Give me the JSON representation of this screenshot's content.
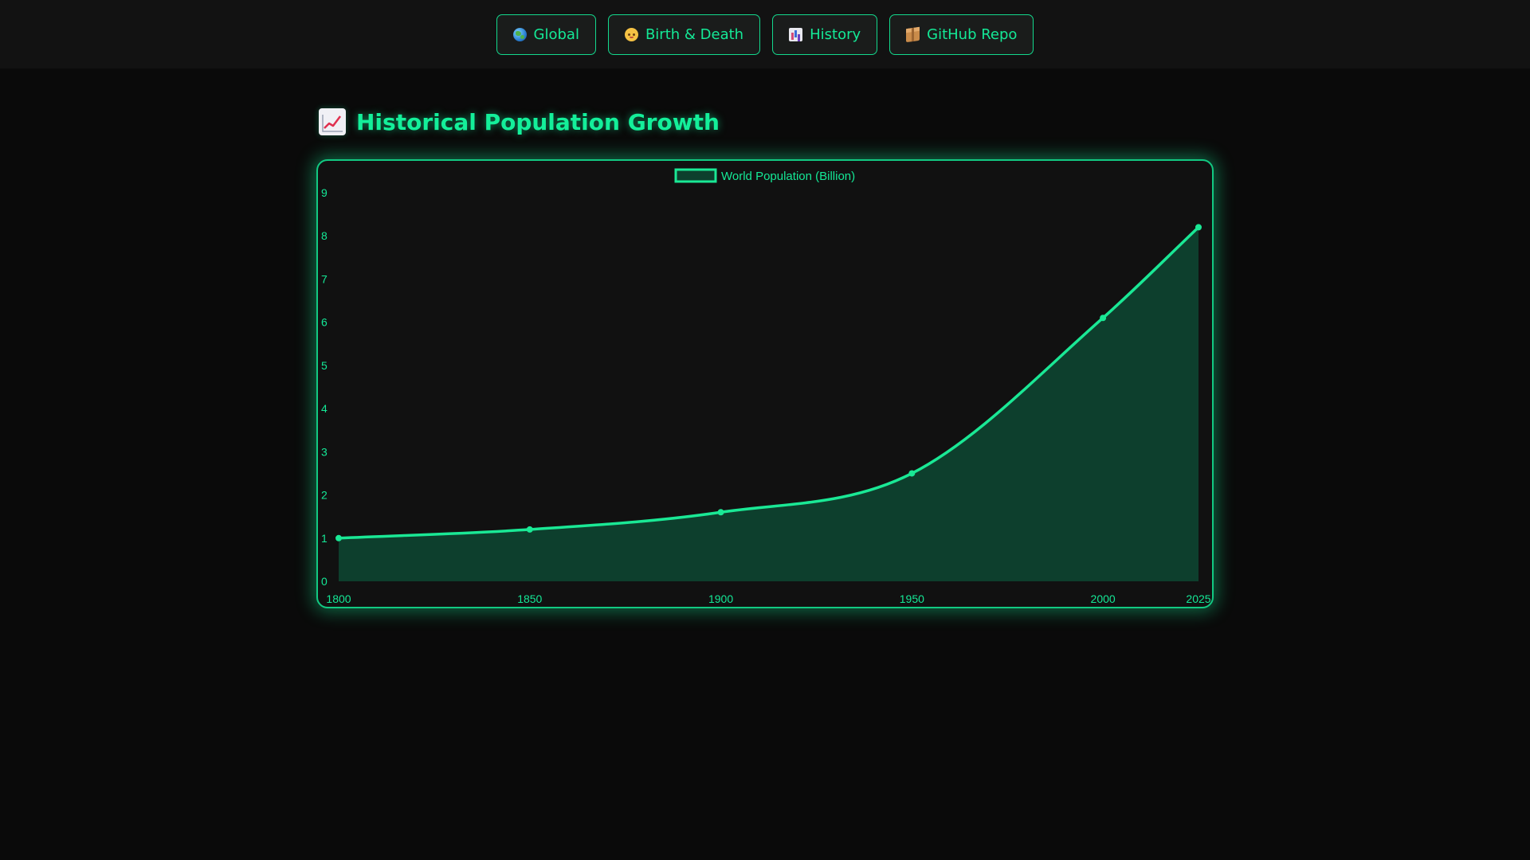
{
  "nav": {
    "items": [
      {
        "label": "Global",
        "icon": "globe-icon"
      },
      {
        "label": "Birth & Death",
        "icon": "baby-icon"
      },
      {
        "label": "History",
        "icon": "bar-chart-icon"
      },
      {
        "label": "GitHub Repo",
        "icon": "package-icon"
      }
    ]
  },
  "section": {
    "title": "Historical Population Growth",
    "icon": "chart-increasing-icon"
  },
  "colors": {
    "accent": "#14e896",
    "line": "#1ae895",
    "fill": "#0d3f2d",
    "background": "#0a0a0a",
    "card": "#111111"
  },
  "chart_data": {
    "type": "area",
    "x": [
      "1800",
      "1850",
      "1900",
      "1950",
      "2000",
      "2025"
    ],
    "x_numeric": [
      1800,
      1850,
      1900,
      1950,
      2000,
      2025
    ],
    "series": [
      {
        "name": "World Population (Billion)",
        "values": [
          1.0,
          1.2,
          1.6,
          2.5,
          6.1,
          8.2
        ]
      }
    ],
    "yticks": [
      "0",
      "1",
      "2",
      "3",
      "4",
      "5",
      "6",
      "7",
      "8",
      "9"
    ],
    "ylim": [
      0,
      9
    ],
    "legend": "top-center",
    "grid": false
  }
}
